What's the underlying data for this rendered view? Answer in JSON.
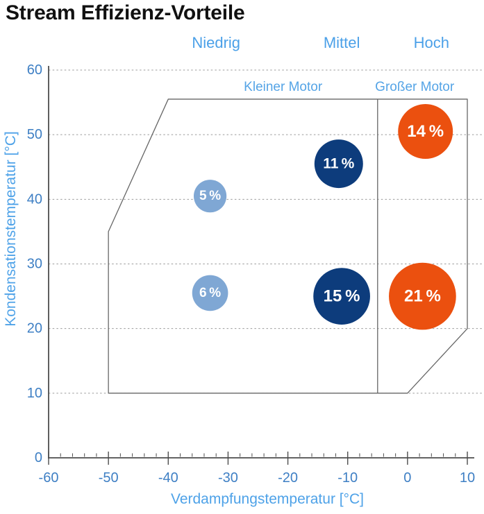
{
  "page": {
    "title": "Stream Effizienz-Vorteile"
  },
  "chart_data": {
    "type": "scatter",
    "subtype": "bubble",
    "title": "Stream Effizienz-Vorteile",
    "xlabel": "Verdampfungstemperatur [°C]",
    "ylabel": "Kondensationstemperatur [°C]",
    "xlim": [
      -60,
      10
    ],
    "ylim": [
      0,
      60
    ],
    "x_ticks": [
      -60,
      -50,
      -40,
      -30,
      -20,
      -10,
      0,
      10
    ],
    "y_ticks": [
      0,
      10,
      20,
      30,
      40,
      50,
      60
    ],
    "x_minor_tick_step": 2,
    "grid": "horizontal-dashed",
    "legend_position": "none",
    "column_headers": [
      {
        "label": "Niedrig",
        "x": -32
      },
      {
        "label": "Mittel",
        "x": -11
      },
      {
        "label": "Hoch",
        "x": 4
      }
    ],
    "region_labels": [
      {
        "label": "Kleiner Motor",
        "x": -20.8
      },
      {
        "label": "Großer Motor",
        "x": 1.2
      }
    ],
    "operating_envelope": [
      [
        -40,
        55.5
      ],
      [
        10,
        55.5
      ],
      [
        10,
        20
      ],
      [
        0,
        10
      ],
      [
        -50,
        10
      ],
      [
        -50,
        35
      ]
    ],
    "divider_x": -5,
    "series": [
      {
        "name": "Niedrig",
        "color": "#7FA7D4",
        "points": [
          {
            "x": -33,
            "y": 40.5,
            "value": 5,
            "label": "5 %"
          },
          {
            "x": -33,
            "y": 25.5,
            "value": 6,
            "label": "6 %"
          }
        ]
      },
      {
        "name": "Mittel",
        "color": "#0D3C7C",
        "points": [
          {
            "x": -11.5,
            "y": 45.5,
            "value": 11,
            "label": "11 %"
          },
          {
            "x": -11,
            "y": 25,
            "value": 15,
            "label": "15 %"
          }
        ]
      },
      {
        "name": "Hoch",
        "color": "#EB500F",
        "points": [
          {
            "x": 3,
            "y": 50.5,
            "value": 14,
            "label": "14 %"
          },
          {
            "x": 2.5,
            "y": 25,
            "value": 21,
            "label": "21 %"
          }
        ]
      }
    ],
    "colors": {
      "axis": "#4D4D4D",
      "grid": "#9B9B9B",
      "envelope": "#666666",
      "divider": "#666666",
      "tick_label": "#3E7FC4",
      "axis_title": "#4EA2E8",
      "column_header": "#4BA0E8",
      "region_label": "#55A4E6",
      "bubble_text": "#FFFFFF"
    }
  }
}
